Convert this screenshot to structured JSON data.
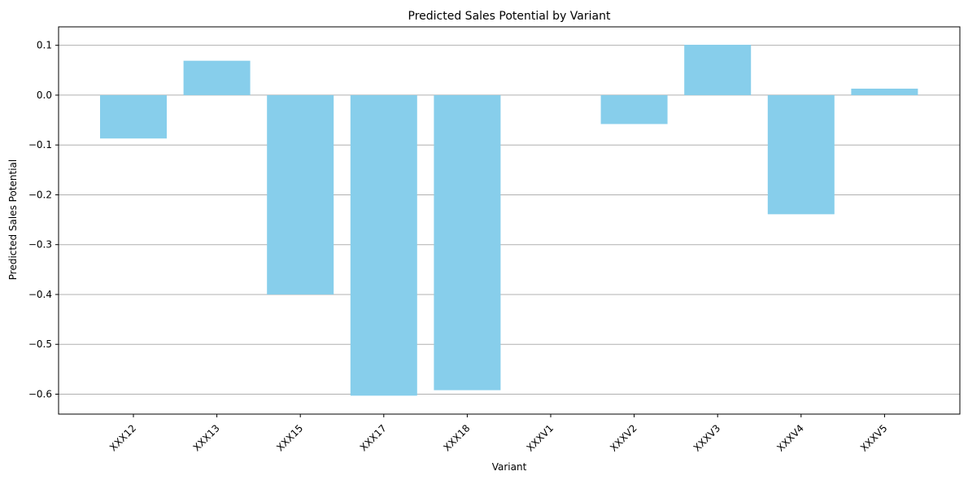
{
  "chart_data": {
    "type": "bar",
    "title": "Predicted Sales Potential by Variant",
    "xlabel": "Variant",
    "ylabel": "Predicted Sales Potential",
    "categories": [
      "XXX12",
      "XXX13",
      "XXX15",
      "XXX17",
      "XXX18",
      "XXXV1",
      "XXXV2",
      "XXXV3",
      "XXXV4",
      "XXXV5"
    ],
    "values": [
      -0.087,
      0.069,
      -0.4,
      -0.603,
      -0.592,
      0.0,
      -0.058,
      0.101,
      -0.239,
      0.013
    ],
    "ylim": [
      -0.64,
      0.137
    ],
    "yticks": [
      -0.6,
      -0.5,
      -0.4,
      -0.3,
      -0.2,
      -0.1,
      0.0,
      0.1
    ],
    "ytick_labels": [
      "−0.6",
      "−0.5",
      "−0.4",
      "−0.3",
      "−0.2",
      "−0.1",
      "0.0",
      "0.1"
    ],
    "grid": "y-major",
    "legend": "none",
    "bar_color": "#87CEEB",
    "grid_color": "#b0b0b0",
    "xtick_rotation_deg": 45
  }
}
